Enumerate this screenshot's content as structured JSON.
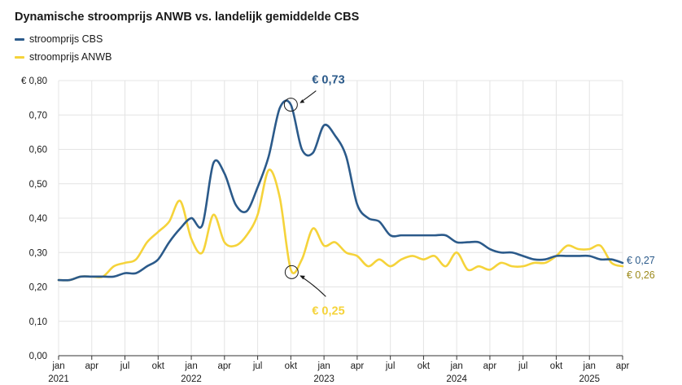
{
  "chart_data": {
    "type": "line",
    "title": "Dynamische stroomprijs ANWB vs. landelijk gemiddelde CBS",
    "xlabel": "",
    "ylabel": "",
    "ylim": [
      0,
      0.8
    ],
    "yticks": [
      0,
      0.1,
      0.2,
      0.3,
      0.4,
      0.5,
      0.6,
      0.7,
      0.8
    ],
    "ytick_labels": [
      "0,00",
      "0,10",
      "0,20",
      "0,30",
      "0,40",
      "0,50",
      "0,60",
      "0,70",
      "€ 0,80"
    ],
    "xlim": [
      "2021-01",
      "2025-04"
    ],
    "xtick_labels": [
      {
        "month": "2021-01",
        "label": "jan",
        "year": "2021"
      },
      {
        "month": "2021-04",
        "label": "apr",
        "year": ""
      },
      {
        "month": "2021-07",
        "label": "jul",
        "year": ""
      },
      {
        "month": "2021-10",
        "label": "okt",
        "year": ""
      },
      {
        "month": "2022-01",
        "label": "jan",
        "year": "2022"
      },
      {
        "month": "2022-04",
        "label": "apr",
        "year": ""
      },
      {
        "month": "2022-07",
        "label": "jul",
        "year": ""
      },
      {
        "month": "2022-10",
        "label": "okt",
        "year": ""
      },
      {
        "month": "2023-01",
        "label": "jan",
        "year": "2023"
      },
      {
        "month": "2023-04",
        "label": "apr",
        "year": ""
      },
      {
        "month": "2023-07",
        "label": "jul",
        "year": ""
      },
      {
        "month": "2023-10",
        "label": "okt",
        "year": ""
      },
      {
        "month": "2024-01",
        "label": "jan",
        "year": "2024"
      },
      {
        "month": "2024-04",
        "label": "apr",
        "year": ""
      },
      {
        "month": "2024-07",
        "label": "jul",
        "year": ""
      },
      {
        "month": "2024-10",
        "label": "okt",
        "year": ""
      },
      {
        "month": "2025-01",
        "label": "jan",
        "year": "2025"
      },
      {
        "month": "2025-04",
        "label": "apr",
        "year": ""
      }
    ],
    "grid": true,
    "legend_position": "top-left",
    "series": [
      {
        "name": "stroomprijs CBS",
        "color": "#2b5a8a",
        "end_label": "€ 0,27",
        "points": [
          [
            "2021-01",
            0.22
          ],
          [
            "2021-02",
            0.22
          ],
          [
            "2021-03",
            0.23
          ],
          [
            "2021-04",
            0.23
          ],
          [
            "2021-05",
            0.23
          ],
          [
            "2021-06",
            0.23
          ],
          [
            "2021-07",
            0.24
          ],
          [
            "2021-08",
            0.24
          ],
          [
            "2021-09",
            0.26
          ],
          [
            "2021-10",
            0.28
          ],
          [
            "2021-11",
            0.33
          ],
          [
            "2021-12",
            0.37
          ],
          [
            "2022-01",
            0.4
          ],
          [
            "2022-02",
            0.38
          ],
          [
            "2022-03",
            0.56
          ],
          [
            "2022-04",
            0.53
          ],
          [
            "2022-05",
            0.44
          ],
          [
            "2022-06",
            0.42
          ],
          [
            "2022-07",
            0.49
          ],
          [
            "2022-08",
            0.58
          ],
          [
            "2022-09",
            0.72
          ],
          [
            "2022-10",
            0.73
          ],
          [
            "2022-11",
            0.6
          ],
          [
            "2022-12",
            0.59
          ],
          [
            "2023-01",
            0.67
          ],
          [
            "2023-02",
            0.64
          ],
          [
            "2023-03",
            0.58
          ],
          [
            "2023-04",
            0.44
          ],
          [
            "2023-05",
            0.4
          ],
          [
            "2023-06",
            0.39
          ],
          [
            "2023-07",
            0.35
          ],
          [
            "2023-08",
            0.35
          ],
          [
            "2023-09",
            0.35
          ],
          [
            "2023-10",
            0.35
          ],
          [
            "2023-11",
            0.35
          ],
          [
            "2023-12",
            0.35
          ],
          [
            "2024-01",
            0.33
          ],
          [
            "2024-02",
            0.33
          ],
          [
            "2024-03",
            0.33
          ],
          [
            "2024-04",
            0.31
          ],
          [
            "2024-05",
            0.3
          ],
          [
            "2024-06",
            0.3
          ],
          [
            "2024-07",
            0.29
          ],
          [
            "2024-08",
            0.28
          ],
          [
            "2024-09",
            0.28
          ],
          [
            "2024-10",
            0.29
          ],
          [
            "2024-11",
            0.29
          ],
          [
            "2024-12",
            0.29
          ],
          [
            "2025-01",
            0.29
          ],
          [
            "2025-02",
            0.28
          ],
          [
            "2025-03",
            0.28
          ],
          [
            "2025-04",
            0.27
          ]
        ]
      },
      {
        "name": "stroomprijs ANWB",
        "color": "#f5d33a",
        "end_label": "€ 0,26",
        "points": [
          [
            "2021-01",
            0.22
          ],
          [
            "2021-02",
            0.22
          ],
          [
            "2021-03",
            0.23
          ],
          [
            "2021-04",
            0.23
          ],
          [
            "2021-05",
            0.23
          ],
          [
            "2021-06",
            0.26
          ],
          [
            "2021-07",
            0.27
          ],
          [
            "2021-08",
            0.28
          ],
          [
            "2021-09",
            0.33
          ],
          [
            "2021-10",
            0.36
          ],
          [
            "2021-11",
            0.39
          ],
          [
            "2021-12",
            0.45
          ],
          [
            "2022-01",
            0.34
          ],
          [
            "2022-02",
            0.3
          ],
          [
            "2022-03",
            0.41
          ],
          [
            "2022-04",
            0.33
          ],
          [
            "2022-05",
            0.32
          ],
          [
            "2022-06",
            0.35
          ],
          [
            "2022-07",
            0.41
          ],
          [
            "2022-08",
            0.54
          ],
          [
            "2022-09",
            0.46
          ],
          [
            "2022-10",
            0.25
          ],
          [
            "2022-11",
            0.28
          ],
          [
            "2022-12",
            0.37
          ],
          [
            "2023-01",
            0.32
          ],
          [
            "2023-02",
            0.33
          ],
          [
            "2023-03",
            0.3
          ],
          [
            "2023-04",
            0.29
          ],
          [
            "2023-05",
            0.26
          ],
          [
            "2023-06",
            0.28
          ],
          [
            "2023-07",
            0.26
          ],
          [
            "2023-08",
            0.28
          ],
          [
            "2023-09",
            0.29
          ],
          [
            "2023-10",
            0.28
          ],
          [
            "2023-11",
            0.29
          ],
          [
            "2023-12",
            0.26
          ],
          [
            "2024-01",
            0.3
          ],
          [
            "2024-02",
            0.25
          ],
          [
            "2024-03",
            0.26
          ],
          [
            "2024-04",
            0.25
          ],
          [
            "2024-05",
            0.27
          ],
          [
            "2024-06",
            0.26
          ],
          [
            "2024-07",
            0.26
          ],
          [
            "2024-08",
            0.27
          ],
          [
            "2024-09",
            0.27
          ],
          [
            "2024-10",
            0.29
          ],
          [
            "2024-11",
            0.32
          ],
          [
            "2024-12",
            0.31
          ],
          [
            "2025-01",
            0.31
          ],
          [
            "2025-02",
            0.32
          ],
          [
            "2025-03",
            0.27
          ],
          [
            "2025-04",
            0.26
          ]
        ]
      }
    ],
    "annotations": [
      {
        "text": "€ 0,73",
        "series": "stroomprijs CBS",
        "month": "2022-10",
        "value": 0.73,
        "color": "#2b5a8a"
      },
      {
        "text": "€ 0,25",
        "series": "stroomprijs ANWB",
        "month": "2022-10",
        "value": 0.25,
        "color": "#f5d33a"
      }
    ]
  }
}
